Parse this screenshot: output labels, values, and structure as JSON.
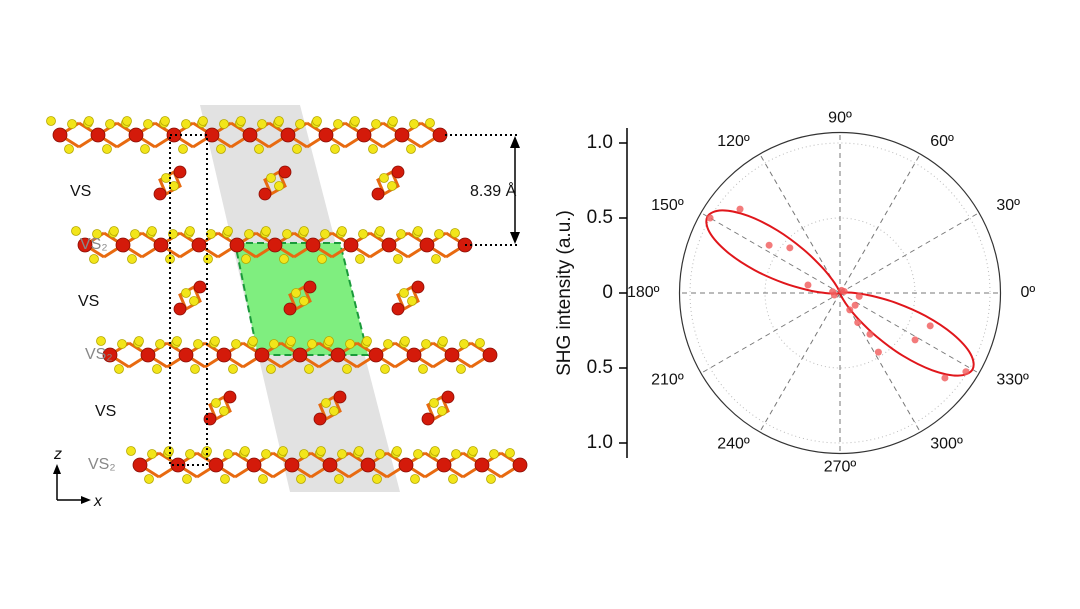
{
  "diagram": {
    "layer_labels": [
      "VS",
      "VS₂",
      "VS",
      "VS₂",
      "VS",
      "VS₂"
    ],
    "spacing_label": "8.39 Å",
    "axis_z": "z",
    "axis_x": "x"
  },
  "chart_data": {
    "type": "polar",
    "ylabel": "SHG intensity (a.u.)",
    "ylim": [
      -1.1,
      1.1
    ],
    "yticks": [
      {
        "value": 1,
        "label": "1.0"
      },
      {
        "value": 0.5,
        "label": "0.5"
      },
      0,
      {
        "value": -0.5,
        "label": "0.5"
      },
      {
        "value": -1,
        "label": "1.0"
      }
    ],
    "rlim": [
      0,
      1.07
    ],
    "rgrid": [
      0.5,
      1.0
    ],
    "angle_ticks": [
      {
        "value": 0,
        "label": "0º"
      },
      {
        "value": 30,
        "label": "30º"
      },
      {
        "value": 60,
        "label": "60º"
      },
      {
        "value": 90,
        "label": "90º"
      },
      {
        "value": 120,
        "label": "120º"
      },
      {
        "value": 150,
        "label": "150º"
      },
      {
        "value": 180,
        "label": "180º"
      },
      {
        "value": 210,
        "label": "210º"
      },
      {
        "value": 240,
        "label": "240º"
      },
      {
        "value": 270,
        "label": "270º"
      },
      {
        "value": 300,
        "label": "300º"
      },
      {
        "value": 330,
        "label": "330º"
      }
    ],
    "points": {
      "color": "#f05a5a",
      "theta": [
        150,
        140,
        146,
        138,
        166,
        321,
        328,
        340,
        328,
        303,
        306,
        321,
        301,
        300,
        60,
        170,
        200,
        20,
        350
      ],
      "r": [
        1.0,
        0.87,
        0.57,
        0.45,
        0.22,
        0.9,
        0.99,
        0.64,
        0.59,
        0.47,
        0.34,
        0.13,
        0.23,
        0.13,
        0.02,
        0.05,
        0.04,
        0.03,
        0.13
      ]
    },
    "fit": {
      "color": "#e0161b",
      "theta": [
        0,
        5,
        10,
        15,
        20,
        25,
        30,
        35,
        40,
        45,
        50,
        55,
        60,
        65,
        70,
        75,
        80,
        85,
        90,
        95,
        100,
        105,
        110,
        115,
        120,
        125,
        130,
        135,
        140,
        145,
        150,
        155,
        160,
        165,
        170,
        175,
        180,
        185,
        190,
        195,
        200,
        205,
        210,
        215,
        220,
        225,
        230,
        235,
        240,
        245,
        250,
        255,
        260,
        265,
        270,
        275,
        280,
        285,
        290,
        295,
        300,
        305,
        310,
        315,
        320,
        325,
        330,
        335,
        340,
        345,
        350,
        355
      ],
      "r": [
        0.1,
        0.04,
        0.01,
        0,
        0,
        0,
        0,
        0,
        0,
        0,
        0,
        0,
        0,
        0,
        0,
        0,
        0,
        0,
        0,
        0,
        0,
        0,
        0.01,
        0.04,
        0.1,
        0.21,
        0.38,
        0.59,
        0.8,
        0.96,
        1.02,
        0.96,
        0.8,
        0.59,
        0.38,
        0.21,
        0.1,
        0.04,
        0.01,
        0,
        0,
        0,
        0,
        0,
        0,
        0,
        0,
        0,
        0,
        0,
        0,
        0,
        0,
        0,
        0,
        0,
        0,
        0,
        0.01,
        0.04,
        0.1,
        0.21,
        0.38,
        0.59,
        0.8,
        0.96,
        1.02,
        0.96,
        0.8,
        0.59,
        0.38,
        0.21
      ]
    }
  }
}
